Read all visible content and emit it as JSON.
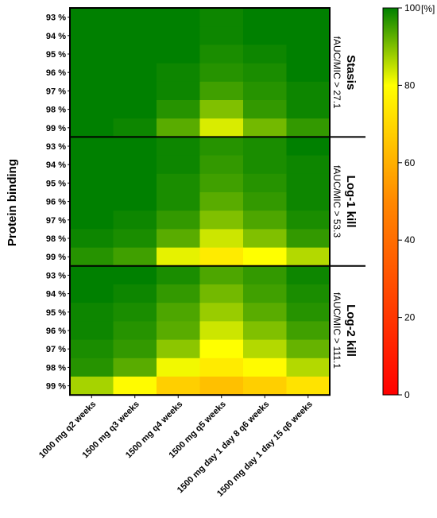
{
  "chart_data": {
    "type": "heatmap",
    "ylabel": "Protein binding",
    "columns": [
      "1000 mg q2 weeks",
      "1500 mg q3 weeks",
      "1500 mg q4 weeks",
      "1500 mg q5 weeks",
      "1500 mg day 1 day 8 q6 weeks",
      "1500 mg day 1 day 15 q6 weeks"
    ],
    "row_labels": [
      "93 %",
      "94 %",
      "95 %",
      "96 %",
      "97 %",
      "98 %",
      "99 %"
    ],
    "colorbar": {
      "unit": "[%]",
      "min": 0,
      "max": 100,
      "ticks": [
        "0",
        "20",
        "40",
        "60",
        "80",
        "100"
      ]
    },
    "colormap": [
      "#ff0000",
      "#ffff00",
      "#008000"
    ],
    "panels": [
      {
        "title": "Stasis",
        "subtitle": "fAUC/MIC > 27.1",
        "values": [
          [
            100,
            100,
            100,
            99,
            100,
            100
          ],
          [
            100,
            100,
            100,
            99,
            100,
            100
          ],
          [
            100,
            100,
            100,
            98,
            99,
            100
          ],
          [
            100,
            100,
            99,
            97,
            98,
            100
          ],
          [
            100,
            100,
            99,
            95,
            97,
            99
          ],
          [
            100,
            100,
            97,
            90,
            96,
            99
          ],
          [
            100,
            99,
            93,
            83,
            91,
            96
          ]
        ]
      },
      {
        "title": "Log-1 kill",
        "subtitle": "fAUC/MIC > 53.3",
        "values": [
          [
            100,
            100,
            99,
            97,
            98,
            100
          ],
          [
            100,
            100,
            99,
            96,
            98,
            99
          ],
          [
            100,
            100,
            98,
            95,
            97,
            99
          ],
          [
            100,
            100,
            98,
            93,
            96,
            99
          ],
          [
            100,
            99,
            96,
            90,
            94,
            98
          ],
          [
            99,
            98,
            93,
            84,
            90,
            96
          ],
          [
            97,
            95,
            82,
            75,
            80,
            86
          ]
        ]
      },
      {
        "title": "Log-2 kill",
        "subtitle": "fAUC/MIC > 111.1",
        "values": [
          [
            100,
            100,
            98,
            94,
            96,
            99
          ],
          [
            100,
            99,
            96,
            91,
            95,
            98
          ],
          [
            99,
            98,
            94,
            88,
            93,
            97
          ],
          [
            99,
            97,
            93,
            84,
            90,
            95
          ],
          [
            98,
            96,
            89,
            80,
            86,
            92
          ],
          [
            97,
            93,
            81,
            75,
            79,
            86
          ],
          [
            87,
            79,
            68,
            64,
            68,
            73
          ]
        ]
      }
    ]
  }
}
